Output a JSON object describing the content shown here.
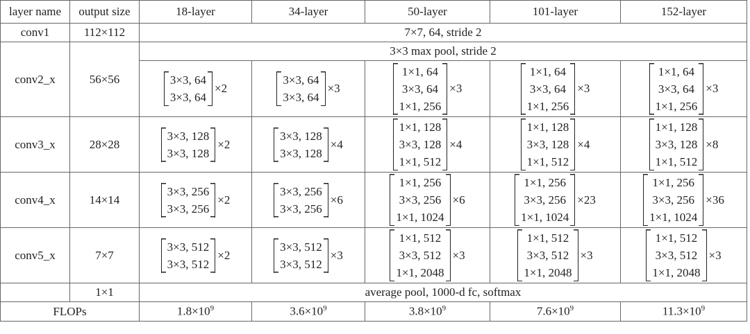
{
  "header": [
    "layer name",
    "output size",
    "18-layer",
    "34-layer",
    "50-layer",
    "101-layer",
    "152-layer"
  ],
  "rows": [
    {
      "name": "conv1",
      "size": "112×112",
      "span": "7×7, 64, stride 2"
    },
    {
      "name": "conv2_x",
      "size": "56×56",
      "span": "3×3 max pool, stride 2",
      "blocks": [
        {
          "lines": [
            "3×3, 64",
            "3×3, 64"
          ],
          "repeat": "×2"
        },
        {
          "lines": [
            "3×3, 64",
            "3×3, 64"
          ],
          "repeat": "×3"
        },
        {
          "lines": [
            "1×1, 64",
            "3×3, 64",
            "1×1, 256"
          ],
          "repeat": "×3"
        },
        {
          "lines": [
            "1×1, 64",
            "3×3, 64",
            "1×1, 256"
          ],
          "repeat": "×3"
        },
        {
          "lines": [
            "1×1, 64",
            "3×3, 64",
            "1×1, 256"
          ],
          "repeat": "×3"
        }
      ]
    },
    {
      "name": "conv3_x",
      "size": "28×28",
      "blocks": [
        {
          "lines": [
            "3×3, 128",
            "3×3, 128"
          ],
          "repeat": "×2"
        },
        {
          "lines": [
            "3×3, 128",
            "3×3, 128"
          ],
          "repeat": "×4"
        },
        {
          "lines": [
            "1×1, 128",
            "3×3, 128",
            "1×1, 512"
          ],
          "repeat": "×4"
        },
        {
          "lines": [
            "1×1, 128",
            "3×3, 128",
            "1×1, 512"
          ],
          "repeat": "×4"
        },
        {
          "lines": [
            "1×1, 128",
            "3×3, 128",
            "1×1, 512"
          ],
          "repeat": "×8"
        }
      ]
    },
    {
      "name": "conv4_x",
      "size": "14×14",
      "blocks": [
        {
          "lines": [
            "3×3, 256",
            "3×3, 256"
          ],
          "repeat": "×2"
        },
        {
          "lines": [
            "3×3, 256",
            "3×3, 256"
          ],
          "repeat": "×6"
        },
        {
          "lines": [
            "1×1, 256",
            "3×3, 256",
            "1×1, 1024"
          ],
          "repeat": "×6"
        },
        {
          "lines": [
            "1×1, 256",
            "3×3, 256",
            "1×1, 1024"
          ],
          "repeat": "×23"
        },
        {
          "lines": [
            "1×1, 256",
            "3×3, 256",
            "1×1, 1024"
          ],
          "repeat": "×36"
        }
      ]
    },
    {
      "name": "conv5_x",
      "size": "7×7",
      "blocks": [
        {
          "lines": [
            "3×3, 512",
            "3×3, 512"
          ],
          "repeat": "×2"
        },
        {
          "lines": [
            "3×3, 512",
            "3×3, 512"
          ],
          "repeat": "×3"
        },
        {
          "lines": [
            "1×1, 512",
            "3×3, 512",
            "1×1, 2048"
          ],
          "repeat": "×3"
        },
        {
          "lines": [
            "1×1, 512",
            "3×3, 512",
            "1×1, 2048"
          ],
          "repeat": "×3"
        },
        {
          "lines": [
            "1×1, 512",
            "3×3, 512",
            "1×1, 2048"
          ],
          "repeat": "×3"
        }
      ]
    },
    {
      "size": "1×1",
      "span": "average pool, 1000-d fc, softmax"
    },
    {
      "name": "FLOPs",
      "flops": [
        {
          "base": "1.8×10",
          "exp": "9"
        },
        {
          "base": "3.6×10",
          "exp": "9"
        },
        {
          "base": "3.8×10",
          "exp": "9"
        },
        {
          "base": "7.6×10",
          "exp": "9"
        },
        {
          "base": "11.3×10",
          "exp": "9"
        }
      ]
    }
  ]
}
